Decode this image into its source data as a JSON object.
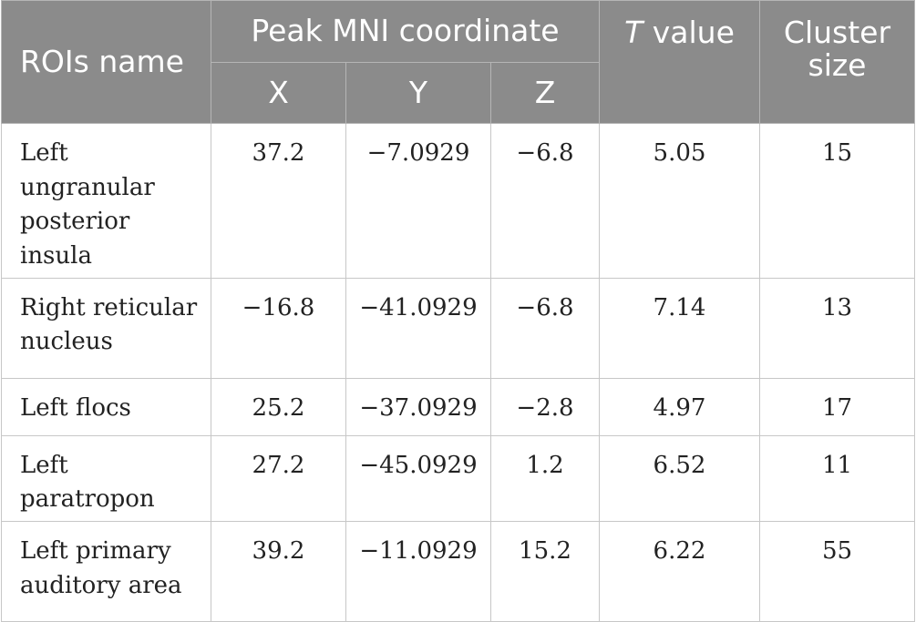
{
  "table": {
    "headers": {
      "roi_name": "ROIs name",
      "peak_group": "Peak MNI coordinate",
      "x": "X",
      "y": "Y",
      "z": "Z",
      "t_italic": "T",
      "t_rest": " value",
      "cluster_size": "Cluster size"
    },
    "rows": [
      {
        "name": "Left ungranular posterior insula",
        "x": "37.2",
        "y": "−7.0929",
        "z": "−6.8",
        "t": "5.05",
        "cluster": "15"
      },
      {
        "name": "Right reticular nucleus",
        "x": "−16.8",
        "y": "−41.0929",
        "z": "−6.8",
        "t": "7.14",
        "cluster": "13"
      },
      {
        "name": "Left flocs",
        "x": "25.2",
        "y": "−37.0929",
        "z": "−2.8",
        "t": "4.97",
        "cluster": "17"
      },
      {
        "name": "Left paratropon",
        "x": "27.2",
        "y": "−45.0929",
        "z": "1.2",
        "t": "6.52",
        "cluster": "11"
      },
      {
        "name": "Left primary auditory area",
        "x": "39.2",
        "y": "−11.0929",
        "z": "15.2",
        "t": "6.22",
        "cluster": "55"
      }
    ]
  }
}
